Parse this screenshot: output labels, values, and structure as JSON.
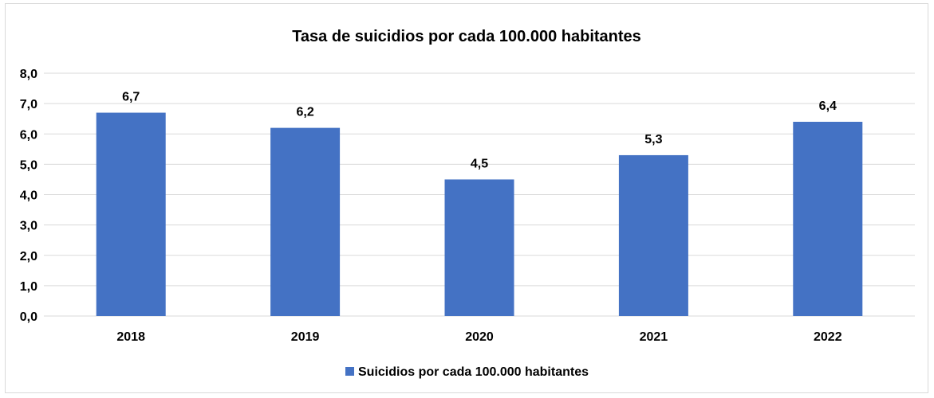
{
  "chart_data": {
    "type": "bar",
    "title": "Tasa de suicidios por cada 100.000 habitantes",
    "xlabel": "",
    "ylabel": "",
    "categories": [
      "2018",
      "2019",
      "2020",
      "2021",
      "2022"
    ],
    "series": [
      {
        "name": "Suicidios por cada 100.000 habitantes",
        "values": [
          6.7,
          6.2,
          4.5,
          5.3,
          6.4
        ],
        "color": "#4472c4"
      }
    ],
    "data_labels": [
      "6,7",
      "6,2",
      "4,5",
      "5,3",
      "6,4"
    ],
    "ylim": [
      0,
      8
    ],
    "y_ticks": [
      "0,0",
      "1,0",
      "2,0",
      "3,0",
      "4,0",
      "5,0",
      "6,0",
      "7,0",
      "8,0"
    ],
    "grid": true,
    "gridline_color": "#d9d9d9",
    "legend_position": "bottom"
  }
}
